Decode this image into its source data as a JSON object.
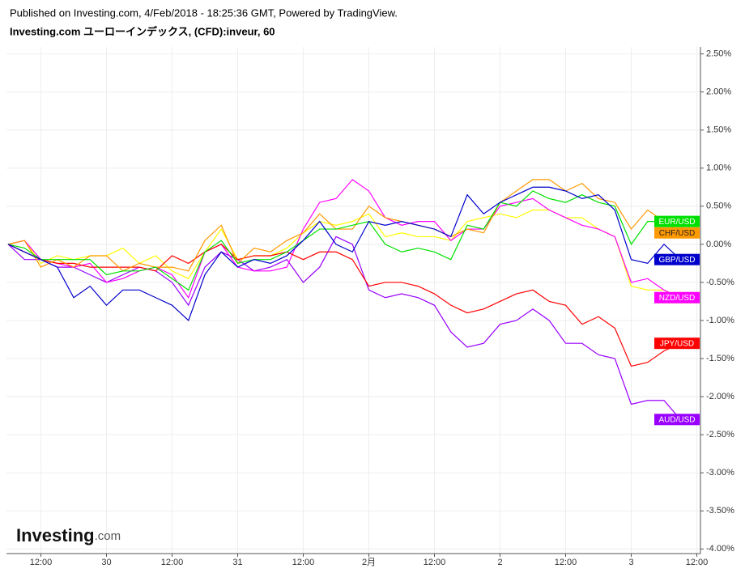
{
  "chart_data": {
    "type": "line",
    "title": "Published on Investing.com, 4/Feb/2018 - 18:25:36 GMT, Powered by TradingView.",
    "subtitle": "Investing.com ユーローインデックス, (CFD):inveur, 60",
    "watermark": {
      "brand": "Investing",
      "suffix": ".com"
    },
    "x": [
      0,
      3,
      6,
      9,
      12,
      15,
      18,
      21,
      24,
      27,
      30,
      33,
      36,
      39,
      42,
      45,
      48,
      51,
      54,
      57,
      60,
      63,
      66,
      69,
      72,
      75,
      78,
      81,
      84,
      87,
      90,
      93,
      96,
      99,
      102,
      105,
      108,
      111,
      114,
      117,
      120,
      123
    ],
    "xlim": [
      0,
      126.5
    ],
    "xticks": [
      {
        "value": 6,
        "label": "12:00"
      },
      {
        "value": 18,
        "label": "30"
      },
      {
        "value": 30,
        "label": "12:00"
      },
      {
        "value": 42,
        "label": "31"
      },
      {
        "value": 54,
        "label": "12:00"
      },
      {
        "value": 66,
        "label": "2月"
      },
      {
        "value": 78,
        "label": "12:00"
      },
      {
        "value": 90,
        "label": "2"
      },
      {
        "value": 102,
        "label": "12:00"
      },
      {
        "value": 114,
        "label": "3"
      },
      {
        "value": 126,
        "label": "12:00"
      }
    ],
    "ylim": [
      -4.05,
      2.57
    ],
    "yticks": [
      {
        "value": 2.5,
        "label": "2.50%"
      },
      {
        "value": 2,
        "label": "2.00%"
      },
      {
        "value": 1.5,
        "label": "1.50%"
      },
      {
        "value": 1,
        "label": "1.00%"
      },
      {
        "value": 0.5,
        "label": "0.50%"
      },
      {
        "value": 0,
        "label": "0.00%"
      },
      {
        "value": -0.5,
        "label": "-0.50%"
      },
      {
        "value": -1,
        "label": "-1.00%"
      },
      {
        "value": -1.5,
        "label": "-1.50%"
      },
      {
        "value": -2,
        "label": "-2.00%"
      },
      {
        "value": -2.5,
        "label": "-2.50%"
      },
      {
        "value": -3,
        "label": "-3.00%"
      },
      {
        "value": -3.5,
        "label": "-3.50%"
      },
      {
        "value": -4,
        "label": "-4.00%"
      }
    ],
    "grid": true,
    "series": [
      {
        "name": null,
        "color": "#ffff00",
        "values": [
          0,
          0.05,
          -0.25,
          -0.15,
          -0.2,
          -0.15,
          -0.15,
          -0.05,
          -0.25,
          -0.15,
          -0.35,
          -0.45,
          -0.1,
          0.2,
          -0.2,
          -0.15,
          -0.15,
          -0.05,
          0.15,
          0.3,
          0.25,
          0.3,
          0.4,
          0.1,
          0.15,
          0.1,
          0.1,
          0.05,
          0.3,
          0.35,
          0.4,
          0.35,
          0.45,
          0.45,
          0.35,
          0.35,
          0.2,
          0.1,
          -0.55,
          -0.6,
          -0.6,
          -0.7
        ]
      },
      {
        "name": "AUD/USD",
        "color": "#9900ff",
        "values": [
          0,
          -0.2,
          -0.2,
          -0.3,
          -0.3,
          -0.4,
          -0.5,
          -0.4,
          -0.3,
          -0.35,
          -0.5,
          -0.8,
          -0.3,
          -0.1,
          -0.2,
          -0.35,
          -0.3,
          -0.2,
          -0.5,
          -0.3,
          0.1,
          0,
          -0.6,
          -0.7,
          -0.65,
          -0.7,
          -0.8,
          -1.15,
          -1.35,
          -1.3,
          -1.05,
          -1.0,
          -0.85,
          -1.0,
          -1.3,
          -1.3,
          -1.45,
          -1.5,
          -2.1,
          -2.05,
          -2.05,
          -2.3
        ]
      },
      {
        "name": "NZD/USD",
        "color": "#ff00ff",
        "values": [
          0,
          0.05,
          -0.2,
          -0.25,
          -0.3,
          -0.25,
          -0.5,
          -0.45,
          -0.35,
          -0.3,
          -0.4,
          -0.7,
          -0.1,
          0,
          -0.3,
          -0.35,
          -0.35,
          -0.3,
          0.2,
          0.55,
          0.6,
          0.85,
          0.7,
          0.35,
          0.25,
          0.3,
          0.3,
          0.05,
          0.2,
          0.2,
          0.5,
          0.55,
          0.6,
          0.45,
          0.35,
          0.25,
          0.2,
          0.1,
          -0.5,
          -0.45,
          -0.6,
          -0.7
        ]
      },
      {
        "name": "JPY/USD",
        "color": "#ff0000",
        "values": [
          0,
          -0.1,
          -0.2,
          -0.25,
          -0.25,
          -0.3,
          -0.3,
          -0.3,
          -0.3,
          -0.35,
          -0.15,
          -0.25,
          -0.1,
          0,
          -0.2,
          -0.15,
          -0.15,
          -0.1,
          -0.2,
          -0.1,
          -0.1,
          -0.2,
          -0.55,
          -0.5,
          -0.5,
          -0.55,
          -0.65,
          -0.8,
          -0.9,
          -0.85,
          -0.75,
          -0.65,
          -0.6,
          -0.75,
          -0.8,
          -1.05,
          -0.95,
          -1.1,
          -1.6,
          -1.55,
          -1.4,
          -1.3
        ]
      },
      {
        "name": "CHF/USD",
        "color": "#ff9900",
        "values": [
          0,
          0.05,
          -0.3,
          -0.2,
          -0.3,
          -0.15,
          -0.15,
          -0.35,
          -0.25,
          -0.3,
          -0.3,
          -0.35,
          0.05,
          0.25,
          -0.25,
          -0.05,
          -0.1,
          0.05,
          0.15,
          0.4,
          0.2,
          0.2,
          0.5,
          0.35,
          0.3,
          0.25,
          0.2,
          0.1,
          0.2,
          0.15,
          0.55,
          0.7,
          0.85,
          0.85,
          0.7,
          0.8,
          0.6,
          0.55,
          0.2,
          0.45,
          0.3,
          0.15
        ]
      },
      {
        "name": "EUR/USD",
        "color": "#00e000",
        "values": [
          0,
          -0.05,
          -0.2,
          -0.2,
          -0.2,
          -0.2,
          -0.4,
          -0.35,
          -0.35,
          -0.3,
          -0.45,
          -0.6,
          -0.1,
          0.05,
          -0.25,
          -0.2,
          -0.2,
          -0.1,
          0.05,
          0.2,
          0.2,
          0.25,
          0.3,
          0,
          -0.1,
          -0.05,
          -0.1,
          -0.2,
          0.25,
          0.2,
          0.55,
          0.5,
          0.7,
          0.6,
          0.55,
          0.65,
          0.55,
          0.5,
          0,
          0.3,
          0.3,
          0.3
        ]
      },
      {
        "name": "GBP/USD",
        "color": "#0000cc",
        "values": [
          0,
          -0.1,
          -0.2,
          -0.3,
          -0.7,
          -0.55,
          -0.8,
          -0.6,
          -0.6,
          -0.7,
          -0.8,
          -1.0,
          -0.4,
          -0.1,
          -0.3,
          -0.2,
          -0.25,
          -0.15,
          0.05,
          0.3,
          0,
          -0.1,
          0.3,
          0.25,
          0.3,
          0.25,
          0.2,
          0.1,
          0.65,
          0.4,
          0.55,
          0.65,
          0.75,
          0.75,
          0.7,
          0.6,
          0.65,
          0.45,
          -0.2,
          -0.25,
          0,
          -0.2
        ]
      }
    ]
  }
}
